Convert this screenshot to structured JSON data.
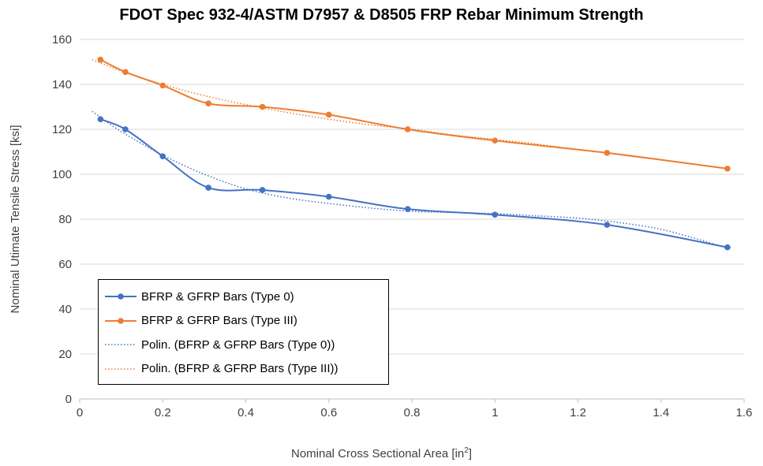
{
  "chart_data": {
    "type": "line",
    "title": "FDOT Spec 932-4/ASTM D7957 & D8505 FRP Rebar Minimum Strength",
    "xlabel_main": "Nominal Cross Sectional Area [in",
    "xlabel_sup": "2",
    "xlabel_end": "]",
    "ylabel": "Nominal Utimate Tensile Stress [ksi]",
    "xlim": [
      0,
      1.6
    ],
    "ylim": [
      0,
      160
    ],
    "xticks": [
      "0",
      "0.2",
      "0.4",
      "0.6",
      "0.8",
      "1",
      "1.2",
      "1.4",
      "1.6"
    ],
    "yticks": [
      "0",
      "20",
      "40",
      "60",
      "80",
      "100",
      "120",
      "140",
      "160"
    ],
    "legend_placement": "bottom-left",
    "grid": "horizontal",
    "series": [
      {
        "name": "BFRP & GFRP Bars (Type 0)",
        "color": "#4472C4",
        "style": "solid-markers",
        "x": [
          0.05,
          0.11,
          0.2,
          0.31,
          0.44,
          0.6,
          0.79,
          1.0,
          1.27,
          1.56
        ],
        "y": [
          124.5,
          120,
          108,
          94,
          93,
          90,
          84.5,
          82,
          77.5,
          67.5
        ]
      },
      {
        "name": "BFRP & GFRP Bars (Type III)",
        "color": "#ED7D31",
        "style": "solid-markers",
        "x": [
          0.05,
          0.11,
          0.2,
          0.31,
          0.44,
          0.6,
          0.79,
          1.0,
          1.27,
          1.56
        ],
        "y": [
          151,
          145.5,
          139.5,
          131.5,
          130,
          126.5,
          120,
          115,
          109.5,
          102.5
        ]
      },
      {
        "name": "Polin. (BFRP & GFRP Bars (Type 0))",
        "color": "#4472C4",
        "style": "dotted",
        "x": [
          0.03,
          0.1,
          0.2,
          0.3,
          0.4,
          0.5,
          0.6,
          0.7,
          0.8,
          0.9,
          1.0,
          1.1,
          1.2,
          1.3,
          1.4,
          1.5,
          1.56
        ],
        "y": [
          128,
          119,
          108.5,
          100,
          93.5,
          89.5,
          87,
          85,
          83.5,
          83,
          82.5,
          81.5,
          80.5,
          78.5,
          75.5,
          70.5,
          67
        ]
      },
      {
        "name": "Polin. (BFRP & GFRP Bars (Type III))",
        "color": "#ED7D31",
        "style": "dotted",
        "x": [
          0.03,
          0.1,
          0.2,
          0.3,
          0.4,
          0.5,
          0.6,
          0.7,
          0.8,
          0.9,
          1.0,
          1.1,
          1.2,
          1.3,
          1.4,
          1.5,
          1.56
        ],
        "y": [
          151,
          146,
          140,
          135,
          131,
          127.5,
          124.5,
          122,
          120,
          117.5,
          115.5,
          113.5,
          111,
          109,
          106.5,
          104,
          102.5
        ]
      }
    ]
  }
}
